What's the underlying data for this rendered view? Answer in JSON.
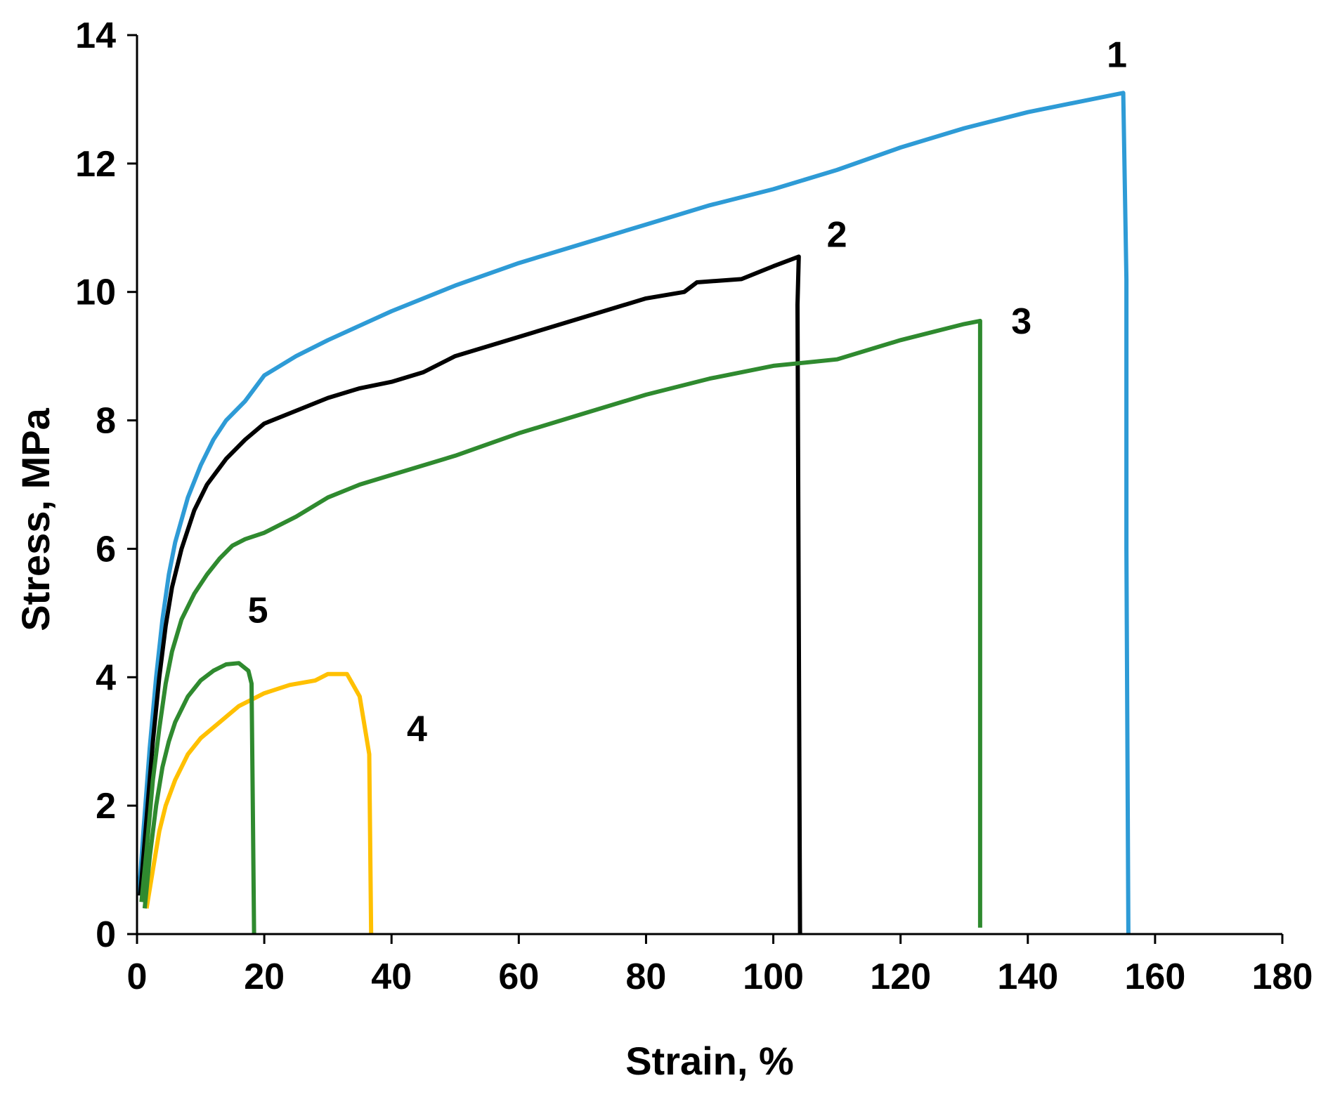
{
  "chart_data": {
    "type": "line",
    "title": "",
    "xlabel": "Strain, %",
    "ylabel": "Stress, MPa",
    "xlim": [
      0,
      180
    ],
    "ylim": [
      0,
      14
    ],
    "x_ticks": [
      0,
      20,
      40,
      60,
      80,
      100,
      120,
      140,
      160,
      180
    ],
    "y_ticks": [
      0,
      2,
      4,
      6,
      8,
      10,
      12,
      14
    ],
    "grid": false,
    "legend": "none",
    "series": [
      {
        "name": "1",
        "color": "#2E9BD6",
        "label_at": [
          154,
          13.7
        ],
        "points": [
          [
            0.3,
            0.6
          ],
          [
            1,
            1.6
          ],
          [
            2,
            2.9
          ],
          [
            3,
            4.0
          ],
          [
            4,
            4.9
          ],
          [
            5,
            5.6
          ],
          [
            6,
            6.1
          ],
          [
            8,
            6.8
          ],
          [
            10,
            7.3
          ],
          [
            12,
            7.7
          ],
          [
            14,
            8.0
          ],
          [
            17,
            8.3
          ],
          [
            20,
            8.7
          ],
          [
            25,
            9.0
          ],
          [
            30,
            9.25
          ],
          [
            40,
            9.7
          ],
          [
            50,
            10.1
          ],
          [
            60,
            10.45
          ],
          [
            70,
            10.75
          ],
          [
            80,
            11.05
          ],
          [
            90,
            11.35
          ],
          [
            100,
            11.6
          ],
          [
            110,
            11.9
          ],
          [
            120,
            12.25
          ],
          [
            130,
            12.55
          ],
          [
            140,
            12.8
          ],
          [
            150,
            13.0
          ],
          [
            155,
            13.1
          ],
          [
            155.5,
            10.2
          ],
          [
            155.5,
            6.0
          ],
          [
            155.8,
            0.0
          ]
        ]
      },
      {
        "name": "2",
        "color": "#000000",
        "label_at": [
          110,
          10.9
        ],
        "points": [
          [
            0.5,
            0.6
          ],
          [
            1.5,
            1.8
          ],
          [
            2.5,
            3.0
          ],
          [
            3.5,
            4.0
          ],
          [
            4.5,
            4.8
          ],
          [
            5.5,
            5.4
          ],
          [
            7,
            6.0
          ],
          [
            9,
            6.6
          ],
          [
            11,
            7.0
          ],
          [
            14,
            7.4
          ],
          [
            17,
            7.7
          ],
          [
            20,
            7.95
          ],
          [
            25,
            8.15
          ],
          [
            30,
            8.35
          ],
          [
            35,
            8.5
          ],
          [
            40,
            8.6
          ],
          [
            45,
            8.75
          ],
          [
            50,
            9.0
          ],
          [
            60,
            9.3
          ],
          [
            70,
            9.6
          ],
          [
            80,
            9.9
          ],
          [
            86,
            10.0
          ],
          [
            88,
            10.15
          ],
          [
            95,
            10.2
          ],
          [
            100,
            10.4
          ],
          [
            104,
            10.55
          ],
          [
            103.8,
            9.8
          ],
          [
            104.2,
            0.0
          ]
        ]
      },
      {
        "name": "3",
        "color": "#2F8A2F",
        "label_at": [
          139,
          9.55
        ],
        "points": [
          [
            0.7,
            0.5
          ],
          [
            1.5,
            1.3
          ],
          [
            2.5,
            2.4
          ],
          [
            3.5,
            3.2
          ],
          [
            4.5,
            3.9
          ],
          [
            5.5,
            4.4
          ],
          [
            7,
            4.9
          ],
          [
            9,
            5.3
          ],
          [
            11,
            5.6
          ],
          [
            13,
            5.85
          ],
          [
            15,
            6.05
          ],
          [
            17,
            6.15
          ],
          [
            20,
            6.25
          ],
          [
            25,
            6.5
          ],
          [
            30,
            6.8
          ],
          [
            35,
            7.0
          ],
          [
            40,
            7.15
          ],
          [
            50,
            7.45
          ],
          [
            60,
            7.8
          ],
          [
            70,
            8.1
          ],
          [
            80,
            8.4
          ],
          [
            90,
            8.65
          ],
          [
            100,
            8.85
          ],
          [
            110,
            8.95
          ],
          [
            120,
            9.25
          ],
          [
            130,
            9.5
          ],
          [
            132.5,
            9.55
          ],
          [
            132.5,
            9.0
          ],
          [
            132.5,
            0.1
          ]
        ]
      },
      {
        "name": "4",
        "color": "#FFC000",
        "label_at": [
          44,
          3.2
        ],
        "points": [
          [
            1.5,
            0.4
          ],
          [
            2.5,
            1.0
          ],
          [
            3.5,
            1.6
          ],
          [
            4.5,
            2.0
          ],
          [
            6,
            2.4
          ],
          [
            8,
            2.8
          ],
          [
            10,
            3.05
          ],
          [
            13,
            3.3
          ],
          [
            16,
            3.55
          ],
          [
            20,
            3.75
          ],
          [
            24,
            3.88
          ],
          [
            28,
            3.95
          ],
          [
            30,
            4.05
          ],
          [
            33,
            4.05
          ],
          [
            35,
            3.7
          ],
          [
            36,
            3.1
          ],
          [
            36.5,
            2.8
          ],
          [
            36.8,
            0.0
          ]
        ]
      },
      {
        "name": "5",
        "color": "#2F8A2F",
        "label_at": [
          19,
          5.05
        ],
        "points": [
          [
            1.2,
            0.4
          ],
          [
            2,
            1.2
          ],
          [
            3,
            2.0
          ],
          [
            4,
            2.6
          ],
          [
            5,
            3.0
          ],
          [
            6,
            3.3
          ],
          [
            8,
            3.7
          ],
          [
            10,
            3.95
          ],
          [
            12,
            4.1
          ],
          [
            14,
            4.2
          ],
          [
            16,
            4.22
          ],
          [
            17.5,
            4.1
          ],
          [
            18,
            3.9
          ],
          [
            18.2,
            2.0
          ],
          [
            18.4,
            0.0
          ]
        ]
      }
    ]
  }
}
